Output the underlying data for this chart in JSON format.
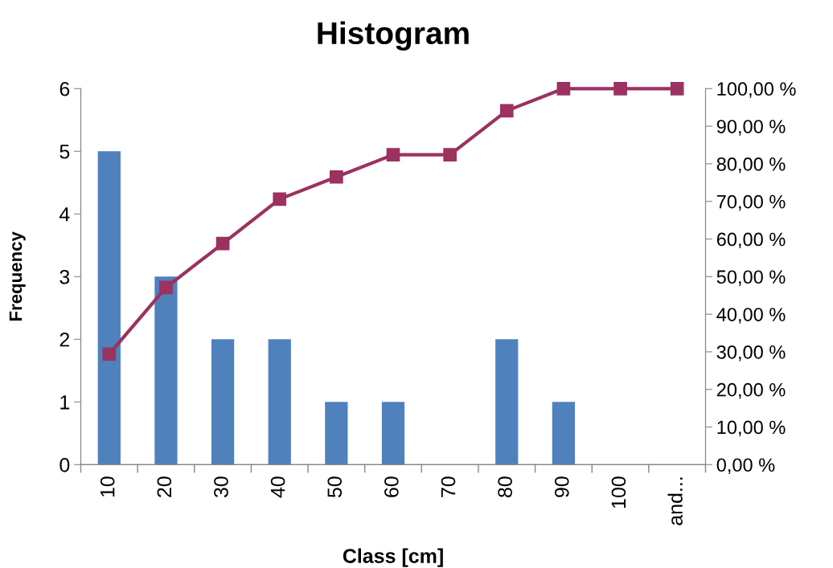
{
  "chart_data": {
    "type": "bar",
    "title": "Histogram",
    "xlabel": "Class [cm]",
    "ylabel": "Frequency",
    "categories": [
      "10",
      "20",
      "30",
      "40",
      "50",
      "60",
      "70",
      "80",
      "90",
      "100",
      "and..."
    ],
    "series": [
      {
        "color": "#4f81bd",
        "values": [
          5,
          3,
          2,
          2,
          1,
          1,
          0,
          2,
          1,
          0,
          0
        ]
      },
      {
        "type": "line",
        "axis": "y2",
        "color": "#9b325f",
        "marker": "square",
        "line_style": "solid",
        "values": [
          29.4,
          47.1,
          58.8,
          70.6,
          76.5,
          82.4,
          82.4,
          94.1,
          100,
          100,
          100
        ]
      }
    ],
    "ylim": [
      0,
      6
    ],
    "yticks": [
      0,
      1,
      2,
      3,
      4,
      5,
      6
    ],
    "y2lim": [
      0,
      100
    ],
    "y2ticks": [
      {
        "value": 0,
        "label": "0,00 %"
      },
      {
        "value": 10,
        "label": "10,00 %"
      },
      {
        "value": 20,
        "label": "20,00 %"
      },
      {
        "value": 30,
        "label": "30,00 %"
      },
      {
        "value": 40,
        "label": "40,00 %"
      },
      {
        "value": 50,
        "label": "50,00 %"
      },
      {
        "value": 60,
        "label": "60,00 %"
      },
      {
        "value": 70,
        "label": "70,00 %"
      },
      {
        "value": 80,
        "label": "80,00 %"
      },
      {
        "value": 90,
        "label": "90,00 %"
      },
      {
        "value": 100,
        "label": "100,00 %"
      }
    ],
    "grid": false
  }
}
